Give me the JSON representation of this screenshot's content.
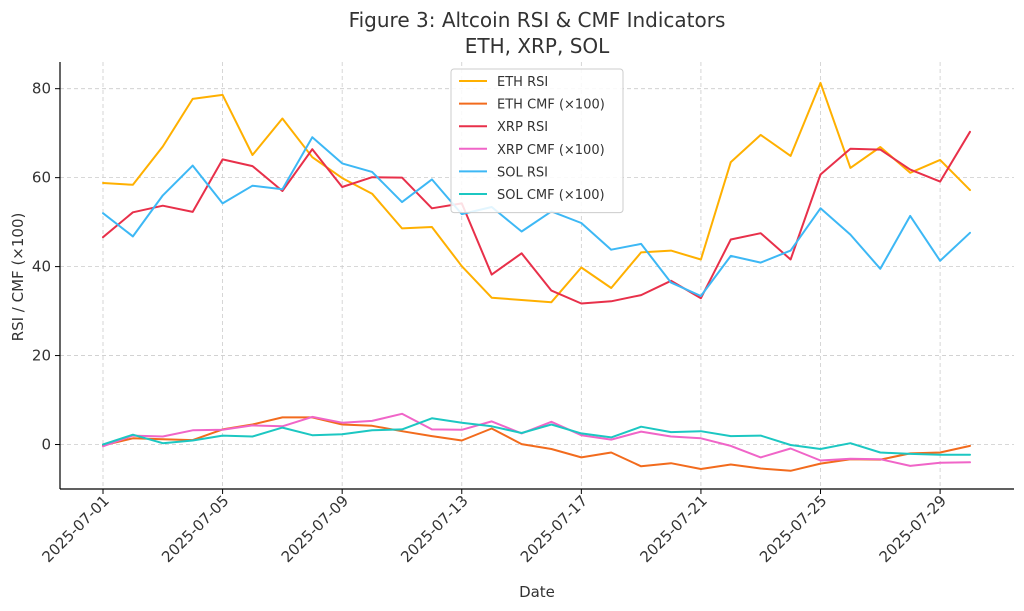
{
  "chart_data": {
    "type": "line",
    "title": "Figure 3: Altcoin RSI & CMF Indicators",
    "subtitle": "ETH, XRP, SOL",
    "xlabel": "Date",
    "ylabel": "RSI / CMF (×100)",
    "ylim": [
      -10,
      86
    ],
    "y_ticks": [
      0,
      20,
      40,
      60,
      80
    ],
    "x_tick_labels": [
      "2025-07-01",
      "2025-07-05",
      "2025-07-09",
      "2025-07-13",
      "2025-07-17",
      "2025-07-21",
      "2025-07-25",
      "2025-07-29"
    ],
    "grid": true,
    "legend_position": "top-center",
    "x": [
      "2025-07-01",
      "2025-07-02",
      "2025-07-03",
      "2025-07-04",
      "2025-07-05",
      "2025-07-06",
      "2025-07-07",
      "2025-07-08",
      "2025-07-09",
      "2025-07-10",
      "2025-07-11",
      "2025-07-12",
      "2025-07-13",
      "2025-07-14",
      "2025-07-15",
      "2025-07-16",
      "2025-07-17",
      "2025-07-18",
      "2025-07-19",
      "2025-07-20",
      "2025-07-21",
      "2025-07-22",
      "2025-07-23",
      "2025-07-24",
      "2025-07-25",
      "2025-07-26",
      "2025-07-27",
      "2025-07-28",
      "2025-07-29",
      "2025-07-30"
    ],
    "series": [
      {
        "name": "ETH RSI",
        "color": "#FFB000",
        "values": [
          58.8,
          58.4,
          67.0,
          77.7,
          78.6,
          65.1,
          73.3,
          64.6,
          59.9,
          56.4,
          48.6,
          48.9,
          40.1,
          33.0,
          32.5,
          32.0,
          39.8,
          35.2,
          43.2,
          43.6,
          41.6,
          63.5,
          69.6,
          64.9,
          81.3,
          62.2,
          66.9,
          61.1,
          64.0,
          57.2
        ]
      },
      {
        "name": "ETH CMF (×100)",
        "color": "#F26B1D",
        "values": [
          -0.2,
          1.4,
          1.2,
          1.0,
          3.4,
          4.5,
          6.1,
          6.1,
          4.5,
          4.2,
          3.0,
          1.9,
          0.9,
          3.6,
          0.1,
          -1.0,
          -2.9,
          -1.8,
          -4.9,
          -4.2,
          -5.5,
          -4.5,
          -5.4,
          -5.9,
          -4.3,
          -3.3,
          -3.4,
          -2.0,
          -1.8,
          -0.3
        ]
      },
      {
        "name": "XRP RSI",
        "color": "#E8304A",
        "values": [
          46.6,
          52.2,
          53.7,
          52.3,
          64.1,
          62.6,
          57.0,
          66.4,
          57.9,
          60.1,
          60.0,
          53.1,
          54.2,
          38.2,
          43.0,
          34.6,
          31.7,
          32.2,
          33.6,
          36.8,
          32.9,
          46.1,
          47.5,
          41.6,
          60.7,
          66.5,
          66.3,
          61.8,
          59.1,
          70.3
        ]
      },
      {
        "name": "XRP CMF (×100)",
        "color": "#F065C8",
        "values": [
          -0.4,
          2.0,
          1.8,
          3.2,
          3.3,
          4.3,
          4.1,
          6.2,
          4.9,
          5.3,
          6.9,
          3.4,
          3.3,
          5.2,
          2.5,
          5.1,
          2.1,
          1.1,
          2.9,
          1.8,
          1.4,
          -0.3,
          -2.9,
          -0.9,
          -3.6,
          -3.2,
          -3.3,
          -4.8,
          -4.1,
          -4.0
        ]
      },
      {
        "name": "SOL RSI",
        "color": "#3DB8F5",
        "values": [
          52.0,
          46.8,
          56.0,
          62.7,
          54.2,
          58.2,
          57.4,
          69.1,
          63.2,
          61.3,
          54.5,
          59.6,
          51.8,
          53.4,
          47.9,
          52.4,
          49.8,
          43.8,
          45.1,
          36.4,
          33.4,
          42.4,
          40.9,
          43.6,
          53.1,
          47.2,
          39.5,
          51.4,
          41.3,
          47.6
        ]
      },
      {
        "name": "SOL CMF (×100)",
        "color": "#1CC7C2",
        "values": [
          0.0,
          2.2,
          0.3,
          0.9,
          2.0,
          1.8,
          3.8,
          2.1,
          2.3,
          3.2,
          3.4,
          5.9,
          4.9,
          4.1,
          2.6,
          4.5,
          2.5,
          1.6,
          4.0,
          2.8,
          3.0,
          1.9,
          2.0,
          -0.1,
          -1.0,
          0.3,
          -1.8,
          -2.1,
          -2.3,
          -2.3
        ]
      }
    ]
  }
}
